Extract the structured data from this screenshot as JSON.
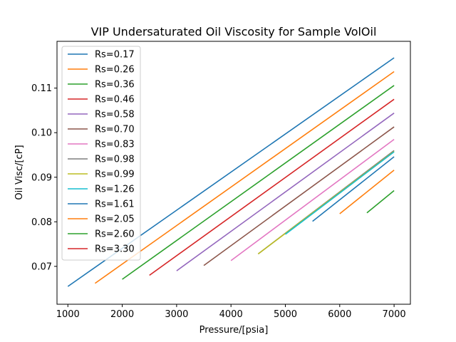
{
  "chart_data": {
    "type": "line",
    "title": "VIP  Undersaturated Oil Viscosity for Sample VolOil",
    "xlabel": "Pressure/[psia]",
    "ylabel": "Oil Visc/[cP]",
    "xlim": [
      800,
      7300
    ],
    "ylim": [
      0.0615,
      0.1205
    ],
    "xticks": [
      1000,
      2000,
      3000,
      4000,
      5000,
      6000,
      7000
    ],
    "xtick_labels": [
      "1000",
      "2000",
      "3000",
      "4000",
      "5000",
      "6000",
      "7000"
    ],
    "yticks": [
      0.07,
      0.08,
      0.09,
      0.1,
      0.11
    ],
    "ytick_labels": [
      "0.07",
      "0.08",
      "0.09",
      "0.10",
      "0.11"
    ],
    "grid": false,
    "legend_position": "top-left",
    "series": [
      {
        "name": "Rs=0.17",
        "color": "#1f77b4",
        "x": [
          1000,
          7000
        ],
        "y": [
          0.0655,
          0.1168
        ]
      },
      {
        "name": "Rs=0.26",
        "color": "#ff7f0e",
        "x": [
          1500,
          7000
        ],
        "y": [
          0.0662,
          0.1137
        ]
      },
      {
        "name": "Rs=0.36",
        "color": "#2ca02c",
        "x": [
          2000,
          7000
        ],
        "y": [
          0.0671,
          0.1106
        ]
      },
      {
        "name": "Rs=0.46",
        "color": "#d62728",
        "x": [
          2500,
          7000
        ],
        "y": [
          0.068,
          0.1075
        ]
      },
      {
        "name": "Rs=0.58",
        "color": "#9467bd",
        "x": [
          3000,
          7000
        ],
        "y": [
          0.069,
          0.1044
        ]
      },
      {
        "name": "Rs=0.70",
        "color": "#8c564b",
        "x": [
          3500,
          7000
        ],
        "y": [
          0.0702,
          0.1013
        ]
      },
      {
        "name": "Rs=0.83",
        "color": "#e377c2",
        "x": [
          4000,
          7000
        ],
        "y": [
          0.0713,
          0.0985
        ]
      },
      {
        "name": "Rs=0.98",
        "color": "#7f7f7f",
        "x": [
          4500,
          7000
        ],
        "y": [
          0.0728,
          0.096
        ]
      },
      {
        "name": "Rs=0.99",
        "color": "#bcbd22",
        "x": [
          4500,
          7000
        ],
        "y": [
          0.0728,
          0.0958
        ]
      },
      {
        "name": "Rs=1.26",
        "color": "#17becf",
        "x": [
          5000,
          7000
        ],
        "y": [
          0.0772,
          0.0957
        ]
      },
      {
        "name": "Rs=1.61",
        "color": "#1f77b4",
        "x": [
          5500,
          7000
        ],
        "y": [
          0.0801,
          0.0946
        ]
      },
      {
        "name": "Rs=2.05",
        "color": "#ff7f0e",
        "x": [
          6000,
          7000
        ],
        "y": [
          0.0818,
          0.0916
        ]
      },
      {
        "name": "Rs=2.60",
        "color": "#2ca02c",
        "x": [
          6500,
          7000
        ],
        "y": [
          0.082,
          0.087
        ]
      },
      {
        "name": "Rs=3.30",
        "color": "#d62728",
        "x": [],
        "y": []
      }
    ]
  }
}
